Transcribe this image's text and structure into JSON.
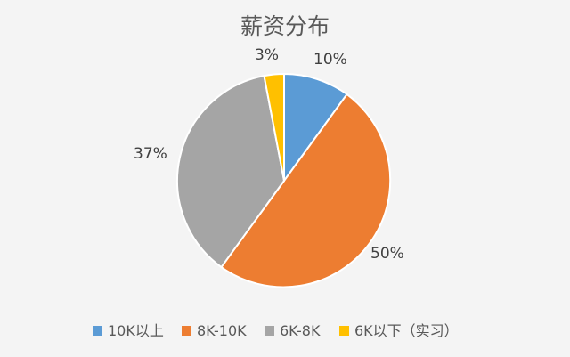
{
  "chart_data": {
    "type": "pie",
    "title": "薪资分布",
    "categories": [
      "10K以上",
      "8K-10K",
      "6K-8K",
      "6K以下（实习）"
    ],
    "values": [
      10,
      50,
      37,
      3
    ],
    "data_labels": [
      "10%",
      "50%",
      "37%",
      "3%"
    ],
    "colors": [
      "#5b9bd5",
      "#ed7d31",
      "#a5a5a5",
      "#ffc000"
    ],
    "legend": {
      "position": "bottom",
      "entries": [
        {
          "label": "10K以上",
          "color": "#5b9bd5"
        },
        {
          "label": "8K-10K",
          "color": "#ed7d31"
        },
        {
          "label": "6K-8K",
          "color": "#a5a5a5"
        },
        {
          "label": "6K以下（实习）",
          "color": "#ffc000"
        }
      ]
    }
  }
}
